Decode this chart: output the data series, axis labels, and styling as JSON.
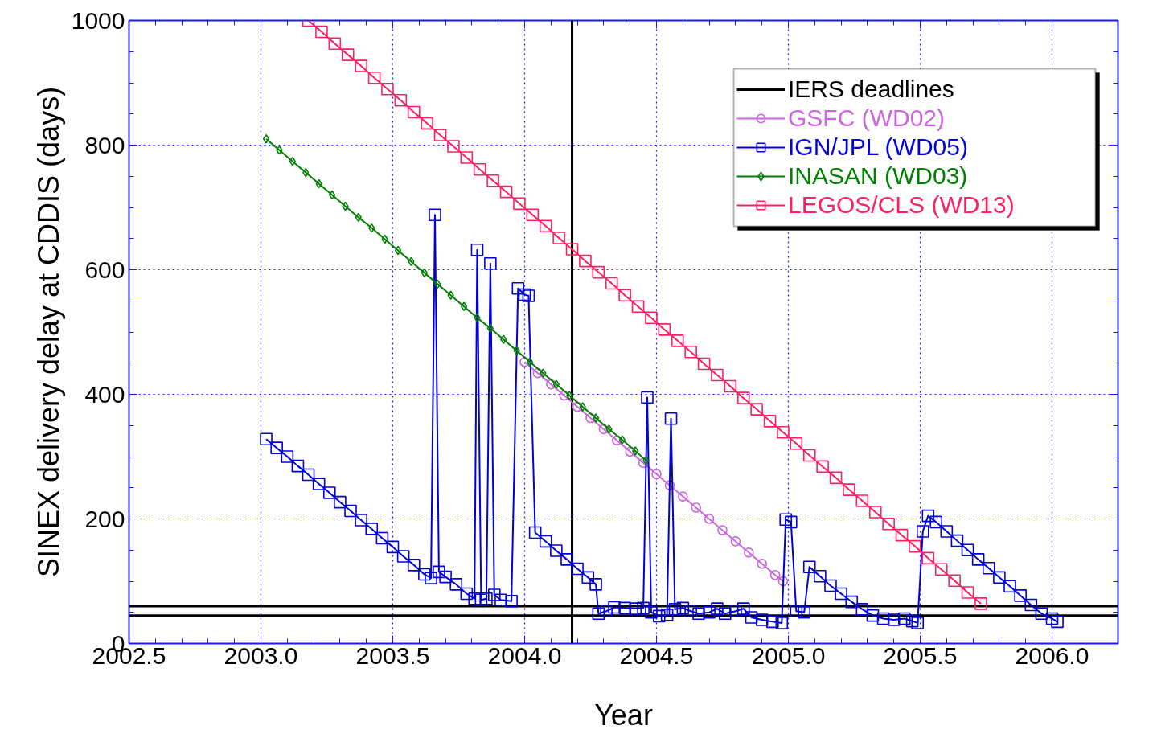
{
  "chart_data": {
    "type": "line",
    "xlabel": "Year",
    "ylabel": "SINEX delivery delay at CDDIS (days)",
    "xlim": [
      2002.5,
      2006.25
    ],
    "ylim": [
      0,
      1000
    ],
    "xticks": [
      {
        "value": 2002.5,
        "label": "2002.5"
      },
      {
        "value": 2003.0,
        "label": "2003.0"
      },
      {
        "value": 2003.5,
        "label": "2003.5"
      },
      {
        "value": 2004.0,
        "label": "2004.0"
      },
      {
        "value": 2004.5,
        "label": "2004.5"
      },
      {
        "value": 2005.0,
        "label": "2005.0"
      },
      {
        "value": 2005.5,
        "label": "2005.5"
      },
      {
        "value": 2006.0,
        "label": "2006.0"
      }
    ],
    "yticks": [
      0,
      200,
      400,
      600,
      800,
      1000
    ],
    "grid": true,
    "legend": "top right",
    "ref_lines": [
      {
        "axis": "y",
        "value": 60,
        "label": "IERS deadlines",
        "color": "#000000"
      },
      {
        "axis": "y",
        "value": 45,
        "label": null,
        "color": "#000000"
      },
      {
        "axis": "x",
        "value": 2004.18,
        "label": null,
        "color": "#000000"
      }
    ],
    "series": [
      {
        "name": "GSFC (WD02)",
        "color": "#cc66dd",
        "marker": "circle",
        "x": [
          2004.0,
          2004.05,
          2004.1,
          2004.15,
          2004.2,
          2004.25,
          2004.3,
          2004.35,
          2004.4,
          2004.45,
          2004.5,
          2004.55,
          2004.6,
          2004.65,
          2004.7,
          2004.75,
          2004.8,
          2004.85,
          2004.9,
          2004.95,
          2004.98
        ],
        "values": [
          452,
          434,
          416,
          398,
          380,
          362,
          344,
          326,
          308,
          290,
          272,
          254,
          236,
          218,
          200,
          182,
          164,
          146,
          128,
          110,
          100
        ]
      },
      {
        "name": "IGN/JPL (WD05)",
        "color": "#0000dd",
        "marker": "square",
        "x": [
          2003.02,
          2003.06,
          2003.1,
          2003.14,
          2003.18,
          2003.22,
          2003.26,
          2003.3,
          2003.34,
          2003.38,
          2003.42,
          2003.46,
          2003.5,
          2003.54,
          2003.58,
          2003.62,
          2003.645,
          2003.66,
          2003.675,
          2003.7,
          2003.74,
          2003.78,
          2003.81,
          2003.82,
          2003.835,
          2003.855,
          2003.87,
          2003.885,
          2003.91,
          2003.95,
          2003.975,
          2004.0,
          2004.015,
          2004.04,
          2004.08,
          2004.12,
          2004.16,
          2004.2,
          2004.24,
          2004.27,
          2004.28,
          2004.31,
          2004.34,
          2004.38,
          2004.42,
          2004.45,
          2004.465,
          2004.48,
          2004.51,
          2004.54,
          2004.555,
          2004.57,
          2004.6,
          2004.63,
          2004.66,
          2004.7,
          2004.73,
          2004.76,
          2004.8,
          2004.83,
          2004.86,
          2004.9,
          2004.94,
          2004.975,
          2004.99,
          2005.01,
          2005.03,
          2005.06,
          2005.08,
          2005.12,
          2005.16,
          2005.2,
          2005.24,
          2005.28,
          2005.32,
          2005.36,
          2005.4,
          2005.44,
          2005.47,
          2005.49,
          2005.51,
          2005.53,
          2005.56,
          2005.6,
          2005.64,
          2005.68,
          2005.72,
          2005.76,
          2005.8,
          2005.84,
          2005.88,
          2005.92,
          2005.96,
          2006.0,
          2006.02
        ],
        "values": [
          328,
          314,
          300,
          285,
          271,
          256,
          242,
          227,
          213,
          198,
          184,
          169,
          155,
          140,
          126,
          111,
          105,
          688,
          115,
          107,
          95,
          80,
          72,
          632,
          70,
          72,
          610,
          78,
          70,
          68,
          570,
          560,
          558,
          178,
          164,
          149,
          135,
          120,
          106,
          95,
          48,
          52,
          58,
          57,
          56,
          57,
          395,
          50,
          44,
          46,
          361,
          55,
          57,
          52,
          48,
          50,
          56,
          48,
          52,
          56,
          42,
          38,
          35,
          33,
          199,
          195,
          52,
          50,
          123,
          108,
          93,
          80,
          67,
          55,
          45,
          40,
          38,
          40,
          36,
          33,
          180,
          205,
          195,
          180,
          165,
          150,
          135,
          121,
          106,
          92,
          77,
          62,
          48,
          40,
          35
        ]
      },
      {
        "name": "INASAN (WD03)",
        "color": "#008000",
        "marker": "diamond",
        "x": [
          2003.02,
          2003.07,
          2003.12,
          2003.17,
          2003.22,
          2003.27,
          2003.32,
          2003.37,
          2003.42,
          2003.47,
          2003.52,
          2003.57,
          2003.62,
          2003.67,
          2003.72,
          2003.77,
          2003.82,
          2003.87,
          2003.92,
          2003.97,
          2004.02,
          2004.07,
          2004.12,
          2004.17,
          2004.22,
          2004.27,
          2004.32,
          2004.37,
          2004.42,
          2004.46
        ],
        "values": [
          810,
          792,
          774,
          756,
          738,
          720,
          702,
          684,
          667,
          649,
          631,
          613,
          595,
          577,
          559,
          541,
          523,
          506,
          488,
          470,
          452,
          434,
          416,
          398,
          380,
          362,
          344,
          327,
          309,
          294
        ]
      },
      {
        "name": "LEGOS/CLS (WD13)",
        "color": "#ff2060",
        "marker": "square",
        "x": [
          2003.18,
          2003.23,
          2003.28,
          2003.33,
          2003.38,
          2003.43,
          2003.48,
          2003.53,
          2003.58,
          2003.63,
          2003.68,
          2003.73,
          2003.78,
          2003.83,
          2003.88,
          2003.93,
          2003.98,
          2004.03,
          2004.08,
          2004.13,
          2004.18,
          2004.23,
          2004.28,
          2004.33,
          2004.38,
          2004.43,
          2004.48,
          2004.53,
          2004.58,
          2004.63,
          2004.68,
          2004.73,
          2004.78,
          2004.83,
          2004.88,
          2004.93,
          2004.98,
          2005.03,
          2005.08,
          2005.13,
          2005.18,
          2005.23,
          2005.28,
          2005.33,
          2005.38,
          2005.43,
          2005.48,
          2005.53,
          2005.58,
          2005.63,
          2005.68,
          2005.73
        ],
        "values": [
          1000,
          982,
          963,
          945,
          927,
          908,
          890,
          872,
          853,
          835,
          816,
          798,
          780,
          761,
          743,
          725,
          706,
          688,
          670,
          651,
          633,
          614,
          596,
          578,
          559,
          541,
          523,
          504,
          486,
          468,
          449,
          431,
          413,
          394,
          376,
          357,
          339,
          321,
          302,
          284,
          266,
          247,
          229,
          211,
          192,
          174,
          156,
          137,
          119,
          101,
          82,
          64
        ]
      }
    ]
  }
}
